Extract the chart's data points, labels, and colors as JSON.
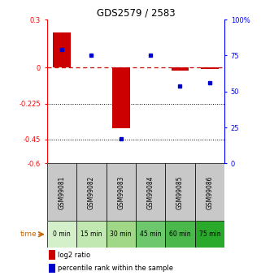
{
  "title": "GDS2579 / 2583",
  "samples": [
    "GSM99081",
    "GSM99082",
    "GSM99083",
    "GSM99084",
    "GSM99085",
    "GSM99086"
  ],
  "time_labels": [
    "0 min",
    "15 min",
    "30 min",
    "45 min",
    "60 min",
    "75 min"
  ],
  "time_colors": [
    "#d4f0ca",
    "#c0e8b0",
    "#a0d888",
    "#6dc86d",
    "#4ab84a",
    "#2aaa2a"
  ],
  "log2_ratio": [
    0.22,
    0.0,
    -0.38,
    0.0,
    -0.02,
    -0.01
  ],
  "percentile_rank": [
    79,
    75,
    17,
    75,
    54,
    56
  ],
  "bar_color": "#cc0000",
  "point_color": "#0000cc",
  "ylim_left": [
    -0.6,
    0.3
  ],
  "ylim_right": [
    0,
    100
  ],
  "yticks_left": [
    0.3,
    0.0,
    -0.225,
    -0.45,
    -0.6
  ],
  "yticks_right": [
    100,
    75,
    50,
    25,
    0
  ],
  "hlines": [
    0.0,
    -0.225,
    -0.45
  ],
  "hline_styles": [
    "dashed",
    "dotted",
    "dotted"
  ],
  "hline_colors": [
    "#cc0000",
    "black",
    "black"
  ],
  "sample_box_color": "#c8c8c8",
  "legend_bar_label": "log2 ratio",
  "legend_point_label": "percentile rank within the sample",
  "time_label_color": "#cc6600"
}
